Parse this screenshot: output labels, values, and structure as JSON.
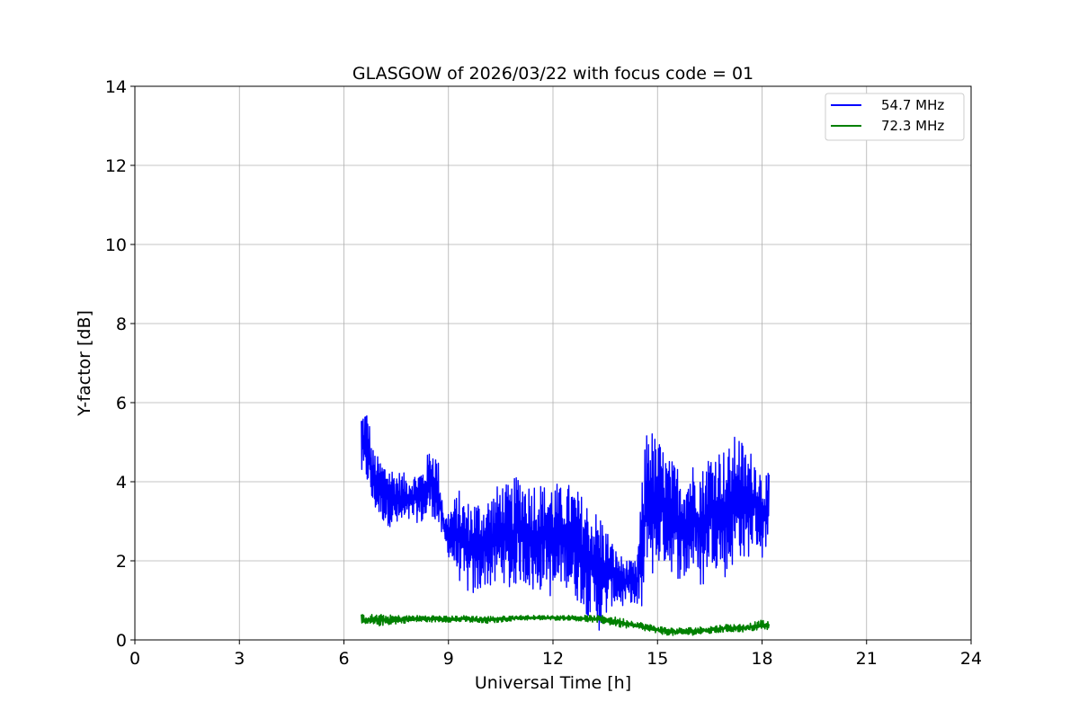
{
  "chart_data": {
    "type": "line",
    "title": "GLASGOW of 2026/03/22 with focus code = 01",
    "xlabel": "Universal Time [h]",
    "ylabel": "Y-factor [dB]",
    "xlim": [
      0,
      24
    ],
    "ylim": [
      0,
      14
    ],
    "xticks": [
      0,
      3,
      6,
      9,
      12,
      15,
      18,
      21,
      24
    ],
    "yticks": [
      0,
      2,
      4,
      6,
      8,
      10,
      12,
      14
    ],
    "grid": true,
    "legend_position": "upper right",
    "series": [
      {
        "name": "54.7 MHz",
        "color": "#0000ff",
        "x": [
          6.5,
          6.6,
          6.7,
          6.8,
          7.0,
          7.2,
          7.5,
          7.8,
          8.0,
          8.3,
          8.5,
          8.7,
          8.9,
          9.0,
          9.3,
          9.5,
          9.8,
          10.0,
          10.3,
          10.5,
          10.8,
          11.0,
          11.3,
          11.5,
          11.8,
          12.0,
          12.3,
          12.5,
          12.8,
          13.0,
          13.2,
          13.4,
          13.6,
          13.8,
          14.0,
          14.2,
          14.4,
          14.6,
          14.7,
          14.9,
          15.1,
          15.3,
          15.5,
          15.8,
          16.0,
          16.3,
          16.5,
          16.8,
          17.0,
          17.3,
          17.5,
          17.8,
          18.0,
          18.2
        ],
        "y_min": [
          4.1,
          3.9,
          3.9,
          3.4,
          3.1,
          2.9,
          2.8,
          2.9,
          3.0,
          2.9,
          3.2,
          2.8,
          2.4,
          2.1,
          1.5,
          1.2,
          1.0,
          1.4,
          1.2,
          1.6,
          1.1,
          1.5,
          1.3,
          1.0,
          1.5,
          0.8,
          1.5,
          1.1,
          0.9,
          0.6,
          0.4,
          0.1,
          0.8,
          0.9,
          0.8,
          1.0,
          0.7,
          0.6,
          2.0,
          1.5,
          2.0,
          1.8,
          1.6,
          1.4,
          1.8,
          1.2,
          2.0,
          1.7,
          1.5,
          2.2,
          1.9,
          2.4,
          2.0,
          2.6
        ],
        "y_max": [
          5.8,
          5.9,
          5.8,
          4.9,
          4.6,
          4.5,
          4.3,
          4.2,
          4.2,
          4.4,
          5.0,
          4.6,
          3.1,
          3.3,
          3.8,
          3.5,
          3.6,
          3.5,
          3.8,
          4.0,
          3.9,
          4.3,
          4.0,
          4.1,
          3.9,
          4.1,
          3.8,
          4.0,
          3.7,
          3.5,
          3.3,
          3.2,
          2.7,
          2.3,
          2.1,
          2.0,
          2.0,
          4.5,
          5.7,
          5.2,
          5.0,
          4.6,
          4.5,
          4.3,
          4.5,
          4.4,
          4.8,
          4.9,
          4.8,
          5.3,
          4.9,
          4.7,
          4.3,
          4.2
        ]
      },
      {
        "name": "72.3 MHz",
        "color": "#008000",
        "x": [
          6.5,
          7.0,
          7.5,
          8.0,
          8.5,
          9.0,
          9.5,
          10.0,
          10.5,
          11.0,
          11.5,
          12.0,
          12.5,
          13.0,
          13.5,
          14.0,
          14.5,
          15.0,
          15.5,
          16.0,
          16.5,
          17.0,
          17.5,
          18.0,
          18.2
        ],
        "y_min": [
          0.35,
          0.35,
          0.4,
          0.45,
          0.45,
          0.45,
          0.45,
          0.4,
          0.45,
          0.5,
          0.5,
          0.5,
          0.5,
          0.45,
          0.4,
          0.3,
          0.25,
          0.15,
          0.1,
          0.12,
          0.15,
          0.2,
          0.2,
          0.25,
          0.25
        ],
        "y_max": [
          0.65,
          0.65,
          0.62,
          0.62,
          0.62,
          0.6,
          0.62,
          0.6,
          0.6,
          0.62,
          0.62,
          0.62,
          0.62,
          0.62,
          0.62,
          0.55,
          0.45,
          0.35,
          0.3,
          0.32,
          0.35,
          0.4,
          0.4,
          0.5,
          0.45
        ]
      }
    ]
  }
}
